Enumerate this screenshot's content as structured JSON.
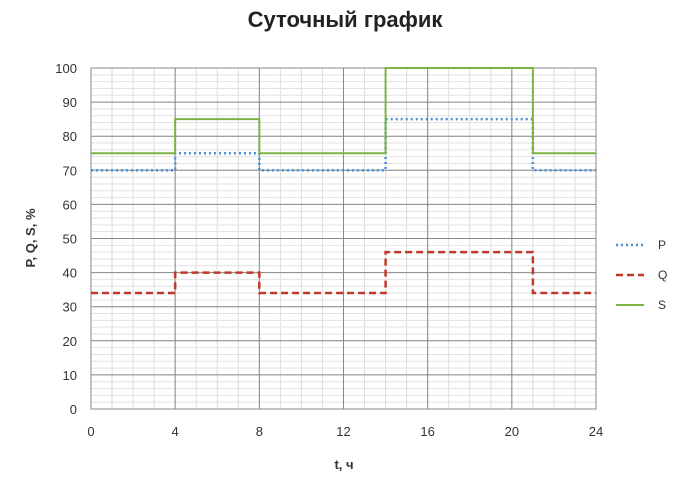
{
  "chart_data": {
    "type": "line",
    "step": true,
    "title": "Суточный график",
    "xlabel": "t, ч",
    "ylabel": "P, Q, S, %",
    "xlim": [
      0,
      24
    ],
    "ylim": [
      0,
      100
    ],
    "xticks": [
      0,
      4,
      8,
      12,
      16,
      20,
      24
    ],
    "xtick_labels": [
      "0",
      "4",
      "8",
      "12",
      "16",
      "20",
      "24"
    ],
    "yticks": [
      0,
      10,
      20,
      30,
      40,
      50,
      60,
      70,
      80,
      90,
      100
    ],
    "ytick_labels": [
      "0",
      "10",
      "20",
      "30",
      "40",
      "50",
      "60",
      "70",
      "80",
      "90",
      "100"
    ],
    "grid": true,
    "legend_position": "right",
    "series": [
      {
        "name": "P",
        "color": "#4a90d9",
        "style": "dotted",
        "x": [
          0,
          4,
          8,
          14,
          21,
          24
        ],
        "y": [
          70,
          75,
          70,
          85,
          70,
          70
        ]
      },
      {
        "name": "Q",
        "color": "#c0392b",
        "style": "dashed",
        "x": [
          0,
          4,
          8,
          14,
          21,
          24
        ],
        "y": [
          34,
          40,
          34,
          46,
          34,
          34
        ]
      },
      {
        "name": "S",
        "color": "#7cb342",
        "style": "solid",
        "x": [
          0,
          4,
          8,
          14,
          21,
          24
        ],
        "y": [
          75,
          85,
          75,
          100,
          75,
          75
        ]
      }
    ]
  }
}
